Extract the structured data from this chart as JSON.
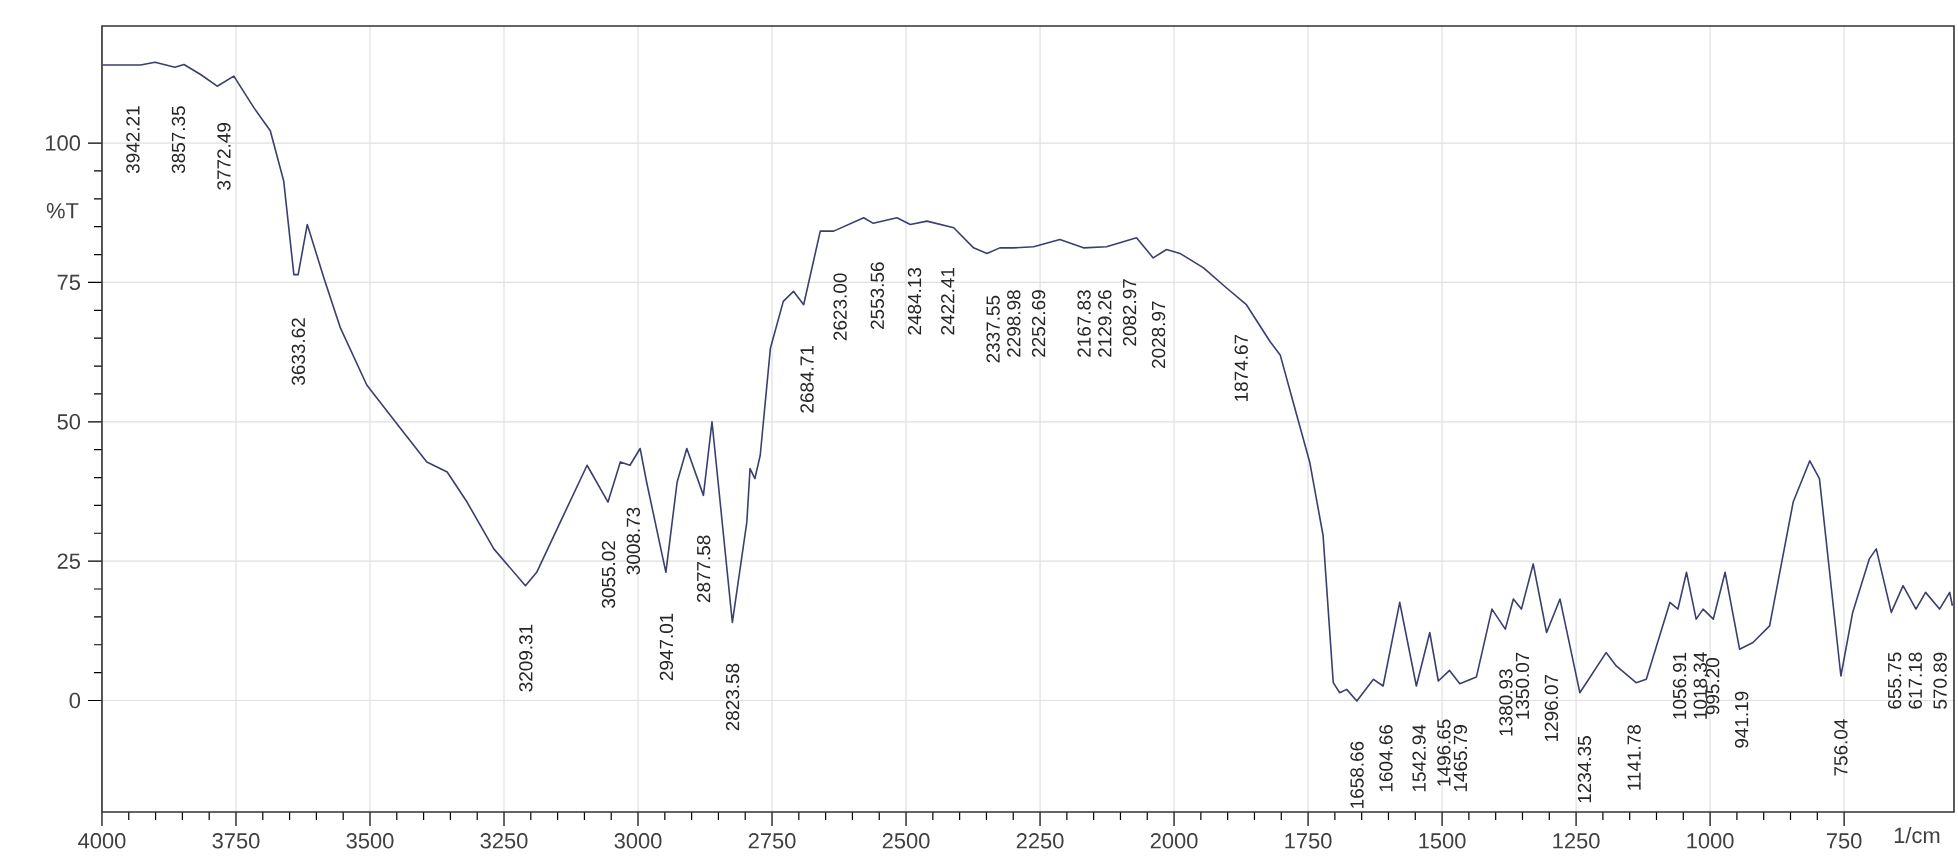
{
  "chart_data": {
    "type": "line",
    "xlabel": "1/cm",
    "ylabel": "%T",
    "xlim": [
      4000,
      545
    ],
    "ylim": [
      -20,
      121
    ],
    "xticks": [
      4000,
      3750,
      3500,
      3250,
      3000,
      2750,
      2500,
      2250,
      2000,
      1750,
      1500,
      1250,
      1000,
      750
    ],
    "yticks": [
      0,
      25,
      50,
      75,
      100
    ],
    "grid": true,
    "marker": "none",
    "line_style": "solid",
    "series": [
      {
        "color": "#3a3f6e",
        "x": [
          4000,
          3928,
          3901,
          3864,
          3847,
          3816,
          3785,
          3754,
          3717,
          3686,
          3661,
          3642,
          3634,
          3617,
          3586,
          3555,
          3506,
          3443,
          3394,
          3356,
          3319,
          3269,
          3210,
          3189,
          3145,
          3095,
          3056,
          3033,
          3015,
          2996,
          2984,
          2948,
          2927,
          2909,
          2878,
          2862,
          2824,
          2797,
          2791,
          2782,
          2772,
          2753,
          2729,
          2710,
          2691,
          2660,
          2635,
          2579,
          2561,
          2517,
          2492,
          2461,
          2411,
          2374,
          2349,
          2325,
          2300,
          2262,
          2213,
          2169,
          2126,
          2070,
          2039,
          2014,
          1989,
          1945,
          1902,
          1865,
          1821,
          1802,
          1778,
          1747,
          1722,
          1703,
          1691,
          1678,
          1659,
          1628,
          1610,
          1579,
          1548,
          1523,
          1507,
          1486,
          1467,
          1436,
          1407,
          1382,
          1367,
          1352,
          1330,
          1305,
          1280,
          1243,
          1194,
          1175,
          1138,
          1119,
          1075,
          1060,
          1044,
          1026,
          1013,
          994,
          972,
          945,
          920,
          889,
          845,
          814,
          796,
          756,
          734,
          703,
          690,
          662,
          640,
          616,
          598,
          572,
          553,
          548
        ],
        "values": [
          114,
          114,
          114.5,
          113.6,
          114.1,
          112.3,
          110.2,
          112,
          106.4,
          102.2,
          93.2,
          76.4,
          76.4,
          85.4,
          75.8,
          66.8,
          56.6,
          48.8,
          42.8,
          41,
          35.6,
          27.2,
          20.6,
          23,
          32,
          42.2,
          35.6,
          42.8,
          42.2,
          45.2,
          39.2,
          23,
          39.2,
          45.2,
          36.8,
          50,
          14,
          32,
          41.6,
          39.8,
          44,
          63.2,
          71.6,
          73.4,
          71,
          84.2,
          84.2,
          86.6,
          85.6,
          86.6,
          85.4,
          86,
          84.8,
          81.2,
          80.2,
          81.2,
          81.2,
          81.4,
          82.7,
          81.2,
          81.4,
          83,
          79.4,
          80.9,
          80.2,
          77.6,
          74,
          71,
          64.4,
          62,
          53.6,
          42.8,
          29.6,
          3.2,
          1.4,
          2,
          -0.1,
          3.8,
          2.6,
          17.6,
          2.6,
          12.2,
          3.5,
          5.4,
          3,
          4.2,
          16.4,
          12.8,
          18.2,
          16.4,
          24.5,
          12.2,
          18.2,
          1.4,
          8.6,
          6.2,
          3.2,
          3.8,
          17.6,
          16.4,
          23,
          14.6,
          16.4,
          14.6,
          23,
          9.2,
          10.4,
          13.4,
          35.6,
          43,
          39.8,
          4.4,
          15.8,
          25.4,
          27.2,
          15.8,
          20.6,
          16.4,
          19.4,
          16.4,
          19.4,
          17
        ]
      }
    ],
    "annotations": [
      {
        "text": "3942.21",
        "x": 3942.21,
        "y": 114
      },
      {
        "text": "3857.35",
        "x": 3857.35,
        "y": 114
      },
      {
        "text": "3772.49",
        "x": 3772.49,
        "y": 111
      },
      {
        "text": "3633.62",
        "x": 3633.62,
        "y": 76
      },
      {
        "text": "3209.31",
        "x": 3209.31,
        "y": 21
      },
      {
        "text": "3055.02",
        "x": 3055.02,
        "y": 36
      },
      {
        "text": "3008.73",
        "x": 3008.73,
        "y": 42
      },
      {
        "text": "2947.01",
        "x": 2947.01,
        "y": 23
      },
      {
        "text": "2877.58",
        "x": 2877.58,
        "y": 37
      },
      {
        "text": "2823.58",
        "x": 2823.58,
        "y": 14
      },
      {
        "text": "2684.71",
        "x": 2684.71,
        "y": 71
      },
      {
        "text": "2623.00",
        "x": 2623.0,
        "y": 84
      },
      {
        "text": "2553.56",
        "x": 2553.56,
        "y": 86
      },
      {
        "text": "2484.13",
        "x": 2484.13,
        "y": 85
      },
      {
        "text": "2422.41",
        "x": 2422.41,
        "y": 85
      },
      {
        "text": "2337.55",
        "x": 2337.55,
        "y": 80
      },
      {
        "text": "2298.98",
        "x": 2298.98,
        "y": 81
      },
      {
        "text": "2252.69",
        "x": 2252.69,
        "y": 81
      },
      {
        "text": "2167.83",
        "x": 2167.83,
        "y": 81
      },
      {
        "text": "2129.26",
        "x": 2129.26,
        "y": 81
      },
      {
        "text": "2082.97",
        "x": 2082.97,
        "y": 83
      },
      {
        "text": "2028.97",
        "x": 2028.97,
        "y": 79
      },
      {
        "text": "1874.67",
        "x": 1874.67,
        "y": 73
      },
      {
        "text": "1658.66",
        "x": 1658.66,
        "y": 0
      },
      {
        "text": "1604.66",
        "x": 1604.66,
        "y": 3
      },
      {
        "text": "1542.94",
        "x": 1542.94,
        "y": 3
      },
      {
        "text": "1496.65",
        "x": 1496.65,
        "y": 4
      },
      {
        "text": "1465.79",
        "x": 1465.79,
        "y": 3
      },
      {
        "text": "1380.93",
        "x": 1380.93,
        "y": 13
      },
      {
        "text": "1350.07",
        "x": 1350.07,
        "y": 16
      },
      {
        "text": "1296.07",
        "x": 1296.07,
        "y": 12
      },
      {
        "text": "1234.35",
        "x": 1234.35,
        "y": 1
      },
      {
        "text": "1141.78",
        "x": 1141.78,
        "y": 3
      },
      {
        "text": "1056.91",
        "x": 1056.91,
        "y": 16
      },
      {
        "text": "1018.34",
        "x": 1018.34,
        "y": 16
      },
      {
        "text": "995.20",
        "x": 995.2,
        "y": 15
      },
      {
        "text": "941.19",
        "x": 941.19,
        "y": 9
      },
      {
        "text": "756.04",
        "x": 756.04,
        "y": 4
      },
      {
        "text": "655.75",
        "x": 655.75,
        "y": 16
      },
      {
        "text": "617.18",
        "x": 617.18,
        "y": 16
      },
      {
        "text": "570.89",
        "x": 570.89,
        "y": 16
      }
    ]
  }
}
